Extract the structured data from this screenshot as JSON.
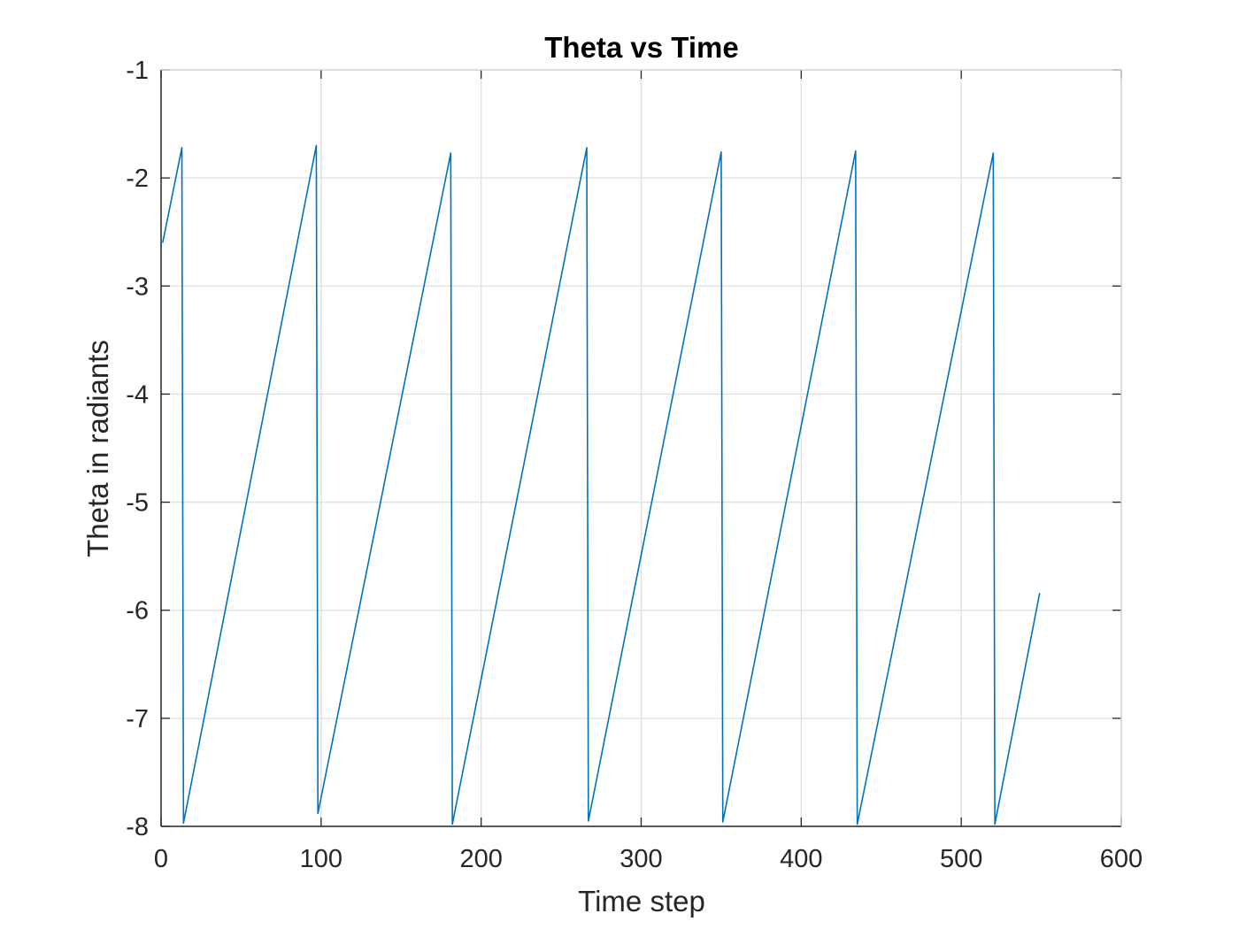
{
  "chart_data": {
    "type": "line",
    "title": "Theta vs Time",
    "xlabel": "Time step",
    "ylabel": "Theta in radiants",
    "xlim": [
      0,
      600
    ],
    "ylim": [
      -8,
      -1
    ],
    "xticks": [
      "0",
      "100",
      "200",
      "300",
      "400",
      "500",
      "600"
    ],
    "yticks": [
      "-1",
      "-2",
      "-3",
      "-4",
      "-5",
      "-6",
      "-7",
      "-8"
    ],
    "grid": true,
    "legend": "none",
    "colors": {
      "line": "#0072BD",
      "grid": "#dfdfdf",
      "axis": "#262626"
    },
    "series": [
      {
        "x": [
          1,
          13,
          14,
          97,
          98,
          181,
          182,
          266,
          267,
          350,
          351,
          434,
          435,
          520,
          521,
          549
        ],
        "y": [
          -2.6,
          -1.72,
          -7.97,
          -1.7,
          -7.88,
          -1.77,
          -7.98,
          -1.72,
          -7.95,
          -1.76,
          -7.96,
          -1.75,
          -7.98,
          -1.77,
          -7.98,
          -5.84
        ]
      }
    ]
  }
}
